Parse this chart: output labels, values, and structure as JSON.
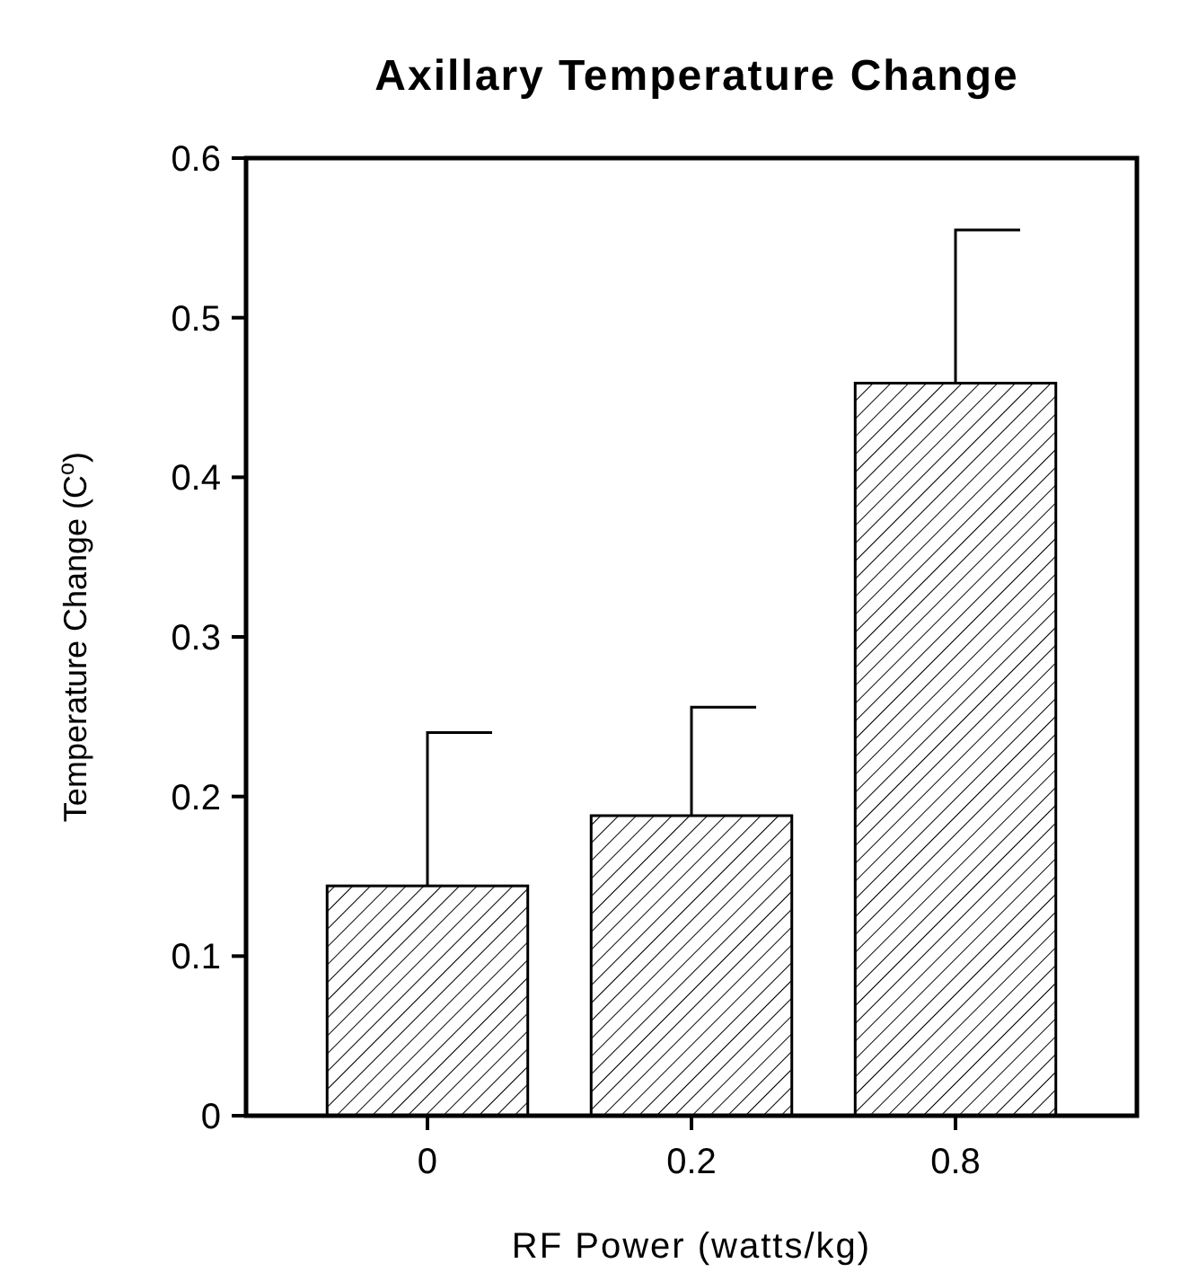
{
  "chart_data": {
    "type": "bar",
    "title": "Axillary Temperature Change",
    "xlabel": "RF Power (watts/kg)",
    "ylabel": "Temperature Change (C$^{o}$)",
    "categories": [
      "0",
      "0.2",
      "0.8"
    ],
    "values": [
      0.144,
      0.188,
      0.459
    ],
    "errors": [
      [
        0.144,
        0.24
      ],
      [
        0.188,
        0.256
      ],
      [
        0.459,
        0.555
      ]
    ],
    "color": "#000000",
    "ylim": [
      0,
      0.6
    ],
    "yticks": [
      0,
      0.1,
      0.2,
      0.3,
      0.4,
      0.5,
      0.6
    ],
    "grid": false
  }
}
